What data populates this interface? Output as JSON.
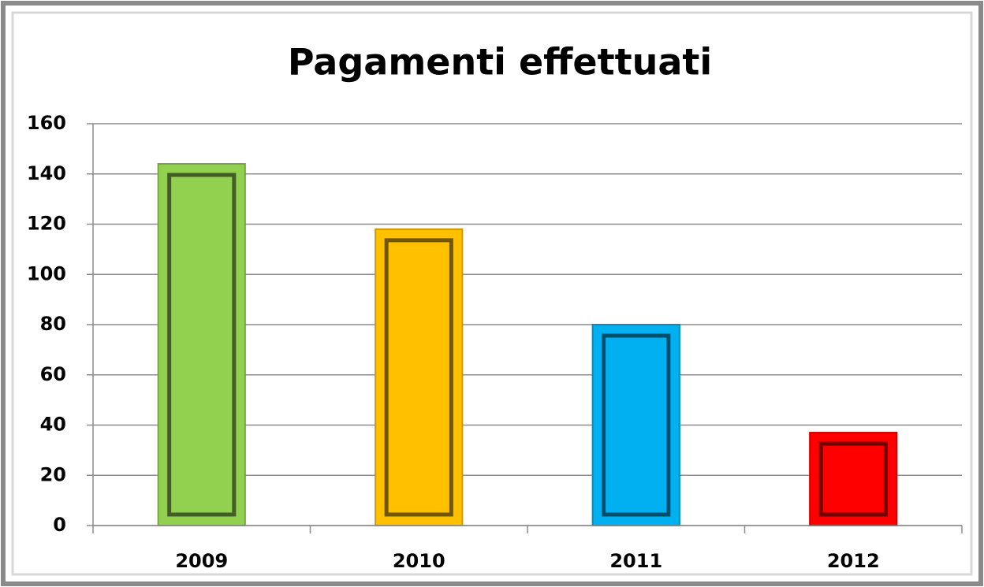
{
  "chart_data": {
    "type": "bar",
    "title": "Pagamenti effettuati",
    "categories": [
      "2009",
      "2010",
      "2011",
      "2012"
    ],
    "values": [
      144,
      118,
      80,
      37
    ],
    "colors": [
      "#92d050",
      "#ffc000",
      "#00b0f0",
      "#ff0000"
    ],
    "ylim": [
      0,
      160
    ],
    "yticks": [
      0,
      20,
      40,
      60,
      80,
      100,
      120,
      140,
      160
    ],
    "grid": true
  }
}
